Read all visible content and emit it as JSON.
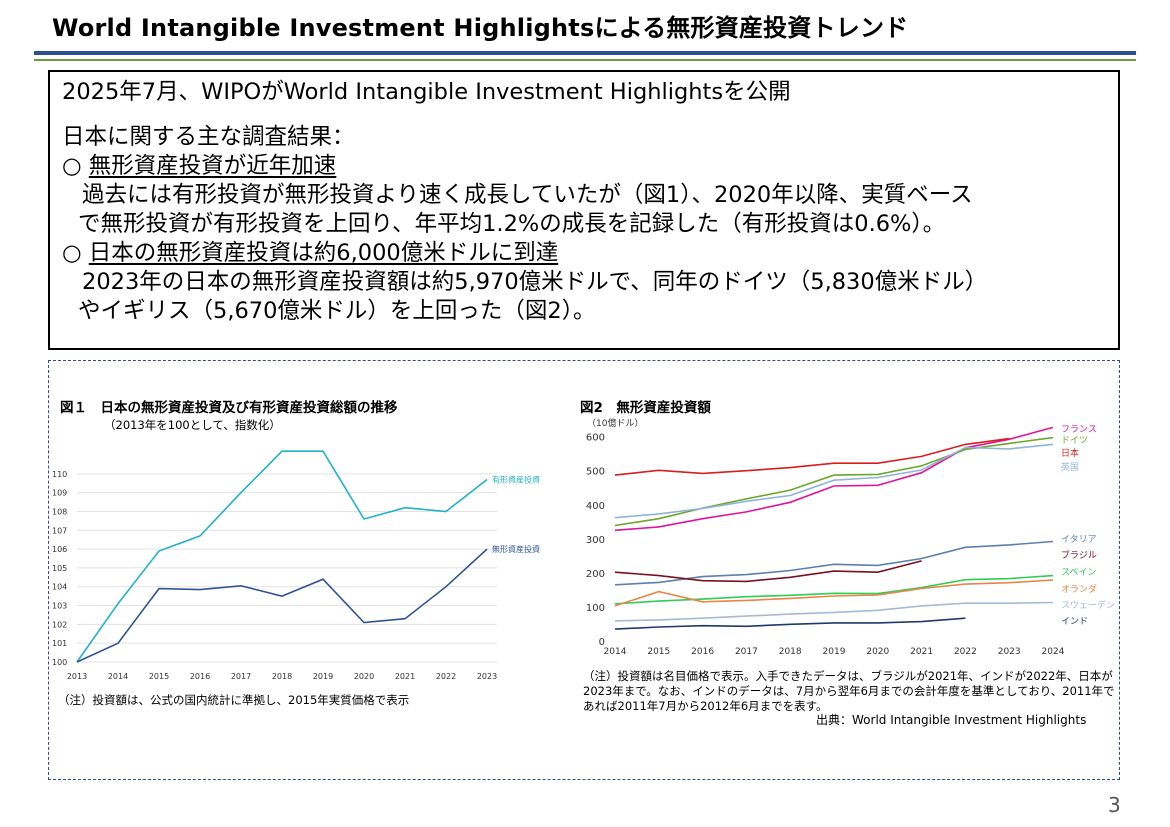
{
  "page": {
    "title": "World Intangible Investment Highlightsによる無形資産投資トレンド",
    "page_number": "3"
  },
  "summary": {
    "line1": "2025年7月、WIPOがWorld Intangible Investment Highlightsを公開",
    "line2": "日本に関する主な調査結果：",
    "bullet1_mark": "○ ",
    "bullet1_heading": "無形資産投資が近年加速",
    "bullet1_text1": "過去には有形投資が無形投資より速く成長していたが（図1）、2020年以降、実質ベース",
    "bullet1_text2": "で無形投資が有形投資を上回り、年平均1.2%の成長を記録した（有形投資は0.6%）。",
    "bullet2_mark": "○ ",
    "bullet2_heading": "日本の無形資産投資は約6,000億米ドルに到達",
    "bullet2_text1": "2023年の日本の無形資産投資額は約5,970億米ドルで、同年のドイツ（5,830億米ドル）",
    "bullet2_text2": "やイギリス（5,670億米ドル）を上回った（図2）。"
  },
  "fig1": {
    "title": "図１　日本の無形資産投資及び有形資産投資総額の推移",
    "subtitle": "（2013年を100として、指数化）",
    "note": "（注）投資額は、公式の国内統計に準拠し、2015年実質価格で表示"
  },
  "fig2": {
    "title": "図2　無形資産投資額",
    "note": "（注）投資額は名目価格で表示。入手できたデータは、ブラジルが2021年、インドが2022年、日本が2023年まで。なお、インドのデータは、7月から翌年6月までの会計年度を基準としており、2011年であれば2011年7月から2012年6月までを表す。",
    "source": "出典：World Intangible Investment Highlights"
  },
  "chart_data": [
    {
      "type": "line",
      "title": "図１　日本の無形資産投資及び有形資産投資総額の推移",
      "subtitle": "（2013年を100として、指数化）",
      "x": [
        2013,
        2014,
        2015,
        2016,
        2017,
        2018,
        2019,
        2020,
        2021,
        2022,
        2023
      ],
      "yticks": [
        100,
        101,
        102,
        103,
        104,
        105,
        106,
        107,
        108,
        109,
        110
      ],
      "ylim": [
        100,
        111
      ],
      "grid": true,
      "legend": "end-of-line labels",
      "series": [
        {
          "name": "有形資産投資",
          "color": "#1fb2c8",
          "values": [
            100.0,
            103.1,
            105.9,
            106.7,
            109.0,
            111.2,
            111.2,
            107.6,
            108.2,
            108.0,
            109.7
          ]
        },
        {
          "name": "無形資産投資",
          "color": "#2f5597",
          "values": [
            100.0,
            101.0,
            103.9,
            103.85,
            104.05,
            103.5,
            104.4,
            102.1,
            102.3,
            104.0,
            106.0
          ]
        }
      ]
    },
    {
      "type": "line",
      "title": "図2　無形資産投資額",
      "ylabel": "（10億ドル）",
      "x": [
        2014,
        2015,
        2016,
        2017,
        2018,
        2019,
        2020,
        2021,
        2022,
        2023,
        2024
      ],
      "yticks": [
        0,
        100,
        200,
        300,
        400,
        500,
        600
      ],
      "ylim": [
        0,
        640
      ],
      "grid": false,
      "legend": "right",
      "series": [
        {
          "name": "フランス",
          "color": "#e0149a",
          "values": [
            328,
            338,
            362,
            382,
            410,
            458,
            460,
            497,
            570,
            595,
            630
          ]
        },
        {
          "name": "ドイツ",
          "color": "#6aa82a",
          "values": [
            342,
            362,
            393,
            420,
            446,
            490,
            492,
            517,
            565,
            583,
            600
          ]
        },
        {
          "name": "日本",
          "color": "#d81e1e",
          "values": [
            490,
            504,
            495,
            503,
            512,
            525,
            525,
            545,
            580,
            597,
            null
          ]
        },
        {
          "name": "英国",
          "color": "#8fb4d9",
          "values": [
            365,
            376,
            392,
            413,
            430,
            475,
            483,
            505,
            571,
            567,
            580
          ]
        },
        {
          "name": "イタリア",
          "color": "#5b7fb3",
          "values": [
            168,
            175,
            192,
            198,
            210,
            228,
            225,
            245,
            278,
            285,
            295
          ]
        },
        {
          "name": "ブラジル",
          "color": "#7a1020",
          "values": [
            205,
            195,
            180,
            178,
            190,
            208,
            205,
            238,
            null,
            null,
            null
          ]
        },
        {
          "name": "スペイン",
          "color": "#2fcd55",
          "values": [
            112,
            120,
            126,
            133,
            137,
            143,
            142,
            160,
            183,
            186,
            195
          ]
        },
        {
          "name": "オランダ",
          "color": "#e98545",
          "values": [
            106,
            148,
            118,
            122,
            128,
            135,
            138,
            157,
            170,
            174,
            182
          ]
        },
        {
          "name": "スウェーデン",
          "color": "#a7b8d6",
          "values": [
            62,
            65,
            70,
            76,
            82,
            87,
            93,
            106,
            114,
            114,
            116
          ]
        },
        {
          "name": "インド",
          "color": "#1f3a6b",
          "values": [
            38,
            44,
            48,
            46,
            52,
            56,
            56,
            60,
            70,
            null,
            null
          ]
        }
      ]
    }
  ]
}
